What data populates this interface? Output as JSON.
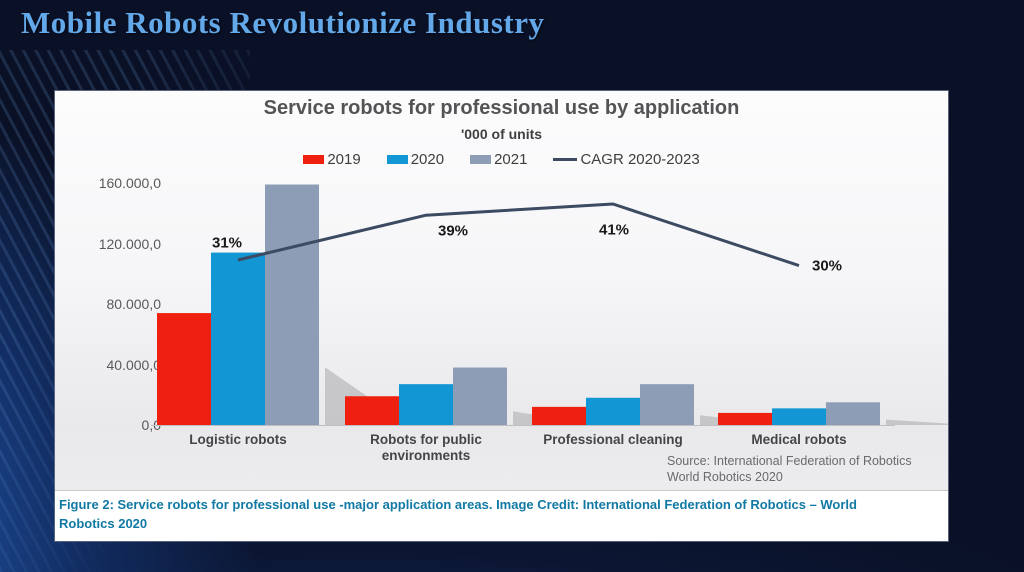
{
  "slide": {
    "title": "Mobile Robots Revolutionize Industry",
    "title_color": "#63A8E9",
    "background_color": "#0A1126",
    "swoosh_color": "#3575CC"
  },
  "figure": {
    "caption": "Figure 2: Service robots for professional use -major application areas. Image Credit: International Federation of Robotics – World Robotics 2020",
    "caption_color": "#1179A4",
    "source_line1": "Source: International Federation of Robotics",
    "source_line2": "World Robotics 2020"
  },
  "chart_data": {
    "type": "bar",
    "title": "Service robots for professional use by application",
    "subtitle": "'000 of units",
    "categories": [
      "Logistic robots",
      "Robots for public environments",
      "Professional cleaning",
      "Medical robots"
    ],
    "series": [
      {
        "name": "2019",
        "color": "#EF2010",
        "values": [
          74000,
          19000,
          12000,
          8000
        ]
      },
      {
        "name": "2020",
        "color": "#1297D4",
        "values": [
          114000,
          27000,
          18000,
          11000
        ]
      },
      {
        "name": "2021",
        "color": "#8E9DB6",
        "values": [
          159000,
          38000,
          27000,
          15000
        ]
      }
    ],
    "line_series": {
      "name": "CAGR 2020-2023",
      "color": "#3C4B61",
      "values": [
        31,
        39,
        41,
        30
      ],
      "labels": [
        "31%",
        "39%",
        "41%",
        "30%"
      ]
    },
    "ylim": [
      0,
      160000
    ],
    "y_ticks": [
      {
        "value": 0,
        "label": "0,0"
      },
      {
        "value": 40000,
        "label": "40.000,0"
      },
      {
        "value": 80000,
        "label": "80.000,0"
      },
      {
        "value": 120000,
        "label": "120.000,0"
      },
      {
        "value": 160000,
        "label": "160.000,0"
      }
    ],
    "legend_position": "top",
    "grid": false
  }
}
